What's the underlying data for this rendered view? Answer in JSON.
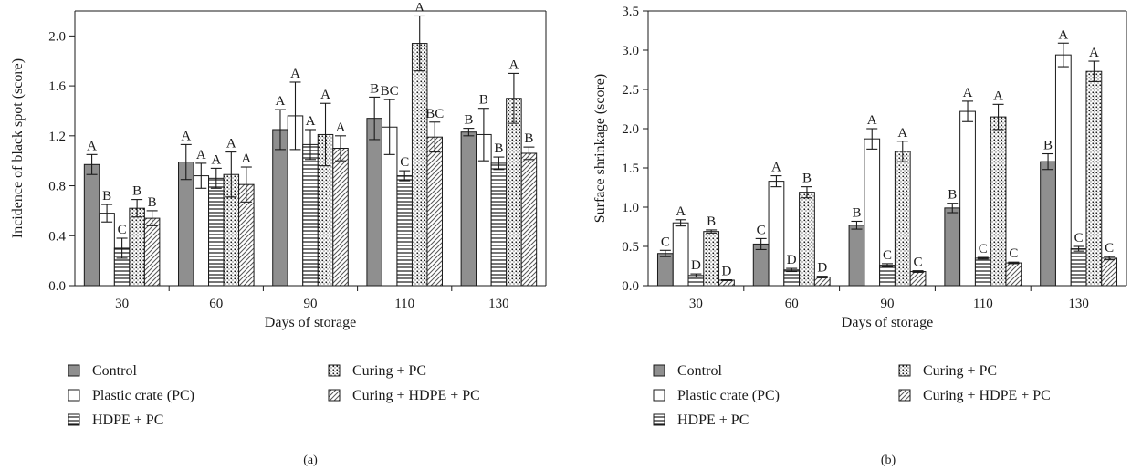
{
  "colors": {
    "control": "#8f8f8f",
    "pc": "#ffffff",
    "hdpe_pc": "#ffffff",
    "curing_pc": "#ffffff",
    "curing_hdpe_pc": "#ffffff",
    "ink": "#1a1a1a"
  },
  "legend": {
    "items": [
      {
        "label": "Control",
        "pattern": "solid-grey"
      },
      {
        "label": "Plastic crate (PC)",
        "pattern": "white"
      },
      {
        "label": "HDPE + PC",
        "pattern": "horizontal-lines"
      },
      {
        "label": "Curing + PC",
        "pattern": "dots"
      },
      {
        "label": "Curing + HDPE + PC",
        "pattern": "diagonal-lines"
      }
    ]
  },
  "chart_data": [
    {
      "type": "bar",
      "panel_label": "(a)",
      "xlabel": "Days of storage",
      "ylabel": "Incidence of black spot (score)",
      "categories": [
        "30",
        "60",
        "90",
        "110",
        "130"
      ],
      "ylim": [
        0,
        2.2
      ],
      "yticks": [
        0.0,
        0.4,
        0.8,
        1.2,
        1.6,
        2.0
      ],
      "ytick_labels": [
        "0.0",
        "0.4",
        "0.8",
        "1.2",
        "1.6",
        "2.0"
      ],
      "grid": false,
      "series": [
        {
          "name": "Control",
          "values": [
            0.97,
            0.99,
            1.25,
            1.34,
            1.23
          ],
          "errors": [
            0.08,
            0.14,
            0.16,
            0.17,
            0.03
          ],
          "letters": [
            "A",
            "A",
            "A",
            "B",
            "B"
          ]
        },
        {
          "name": "Plastic crate (PC)",
          "values": [
            0.58,
            0.88,
            1.36,
            1.27,
            1.21
          ],
          "errors": [
            0.07,
            0.1,
            0.27,
            0.22,
            0.21
          ],
          "letters": [
            "B",
            "A",
            "A",
            "BC",
            "B"
          ]
        },
        {
          "name": "HDPE + PC",
          "values": [
            0.3,
            0.86,
            1.13,
            0.88,
            0.98
          ],
          "errors": [
            0.08,
            0.08,
            0.12,
            0.04,
            0.05
          ],
          "letters": [
            "C",
            "A",
            "A",
            "C",
            "B"
          ]
        },
        {
          "name": "Curing + PC",
          "values": [
            0.62,
            0.89,
            1.21,
            1.94,
            1.5
          ],
          "errors": [
            0.07,
            0.18,
            0.25,
            0.22,
            0.2
          ],
          "letters": [
            "B",
            "A",
            "A",
            "A",
            "A"
          ]
        },
        {
          "name": "Curing + HDPE + PC",
          "values": [
            0.54,
            0.81,
            1.1,
            1.19,
            1.06
          ],
          "errors": [
            0.06,
            0.14,
            0.1,
            0.12,
            0.05
          ],
          "letters": [
            "B",
            "A",
            "A",
            "BC",
            "B"
          ]
        }
      ]
    },
    {
      "type": "bar",
      "panel_label": "(b)",
      "xlabel": "Days of storage",
      "ylabel": "Surface shrinkage (score)",
      "categories": [
        "30",
        "60",
        "90",
        "110",
        "130"
      ],
      "ylim": [
        0,
        3.5
      ],
      "yticks": [
        0.0,
        0.5,
        1.0,
        1.5,
        2.0,
        2.5,
        3.0,
        3.5
      ],
      "ytick_labels": [
        "0.0",
        "0.5",
        "1.0",
        "1.5",
        "2.0",
        "2.5",
        "3.0",
        "3.5"
      ],
      "grid": false,
      "series": [
        {
          "name": "Control",
          "values": [
            0.41,
            0.53,
            0.77,
            0.99,
            1.58
          ],
          "errors": [
            0.04,
            0.07,
            0.05,
            0.06,
            0.1
          ],
          "letters": [
            "C",
            "C",
            "B",
            "B",
            "B"
          ]
        },
        {
          "name": "Plastic crate (PC)",
          "values": [
            0.8,
            1.33,
            1.87,
            2.22,
            2.94
          ],
          "errors": [
            0.04,
            0.07,
            0.13,
            0.13,
            0.15
          ],
          "letters": [
            "A",
            "A",
            "A",
            "A",
            "A"
          ]
        },
        {
          "name": "HDPE + PC",
          "values": [
            0.13,
            0.2,
            0.26,
            0.35,
            0.47
          ],
          "errors": [
            0.02,
            0.02,
            0.02,
            0.01,
            0.03
          ],
          "letters": [
            "D",
            "D",
            "C",
            "C",
            "C"
          ]
        },
        {
          "name": "Curing + PC",
          "values": [
            0.69,
            1.19,
            1.71,
            2.15,
            2.73
          ],
          "errors": [
            0.02,
            0.07,
            0.13,
            0.16,
            0.13
          ],
          "letters": [
            "B",
            "B",
            "A",
            "A",
            "A"
          ]
        },
        {
          "name": "Curing + HDPE + PC",
          "values": [
            0.07,
            0.11,
            0.18,
            0.29,
            0.35
          ],
          "errors": [
            0.005,
            0.01,
            0.01,
            0.01,
            0.02
          ],
          "letters": [
            "D",
            "D",
            "C",
            "C",
            "C"
          ]
        }
      ]
    }
  ]
}
